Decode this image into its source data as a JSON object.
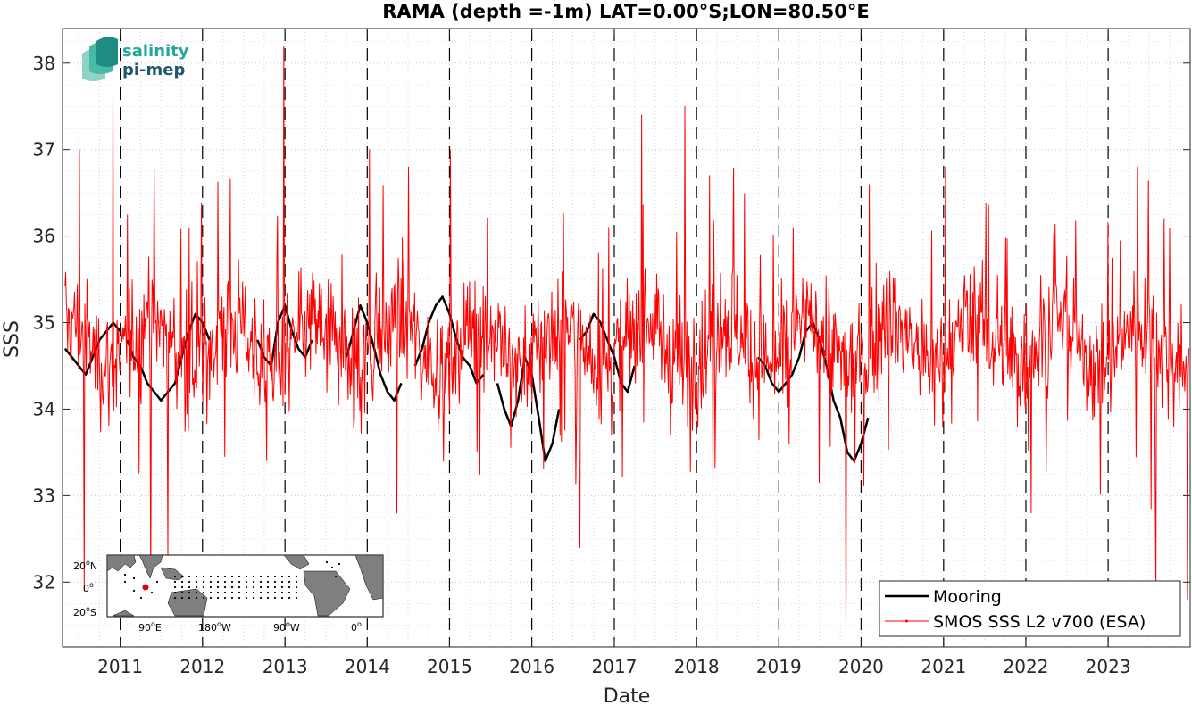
{
  "chart_data": {
    "type": "line",
    "title": "RAMA (depth =-1m) LAT=0.00°S;LON=80.50°E",
    "xlabel": "Date",
    "ylabel": "SSS",
    "xlim": [
      "2010-04-20",
      "2023-12-31"
    ],
    "ylim": [
      31.25,
      38.4
    ],
    "x_ticks": [
      "2011",
      "2012",
      "2013",
      "2014",
      "2015",
      "2016",
      "2017",
      "2018",
      "2019",
      "2020",
      "2021",
      "2022",
      "2023"
    ],
    "y_ticks": [
      "32",
      "33",
      "34",
      "35",
      "36",
      "37",
      "38"
    ],
    "year_lines": [
      "2011-01-01",
      "2012-01-01",
      "2013-01-01",
      "2014-01-01",
      "2015-01-01",
      "2016-01-01",
      "2017-01-01",
      "2018-01-01",
      "2019-01-01",
      "2020-01-01",
      "2021-01-01",
      "2022-01-01",
      "2023-01-01"
    ],
    "grid": true,
    "legend_position": "bottom-right",
    "series": [
      {
        "name": "Mooring",
        "color": "#000000",
        "segments": [
          {
            "x": [
              "2010-05-01",
              "2010-06-01",
              "2010-07-01",
              "2010-08-01",
              "2010-09-01",
              "2010-10-01",
              "2010-11-01",
              "2010-12-01",
              "2011-01-01"
            ],
            "y": [
              34.7,
              34.6,
              34.5,
              34.4,
              34.6,
              34.8,
              34.9,
              35.0,
              34.9
            ]
          },
          {
            "x": [
              "2011-02-01",
              "2011-03-01",
              "2011-04-01",
              "2011-05-01",
              "2011-06-01",
              "2011-07-01",
              "2011-08-01",
              "2011-09-01",
              "2011-10-01",
              "2011-11-01",
              "2011-12-01",
              "2012-01-01",
              "2012-02-01"
            ],
            "y": [
              34.8,
              34.6,
              34.5,
              34.3,
              34.2,
              34.1,
              34.2,
              34.3,
              34.6,
              34.9,
              35.1,
              35.0,
              34.8
            ]
          },
          {
            "x": [
              "2012-09-01",
              "2012-10-01",
              "2012-11-01",
              "2012-12-01",
              "2013-01-01",
              "2013-02-01",
              "2013-03-01",
              "2013-04-01",
              "2013-05-01"
            ],
            "y": [
              34.8,
              34.6,
              34.5,
              35.0,
              35.2,
              34.9,
              34.7,
              34.6,
              34.8
            ]
          },
          {
            "x": [
              "2013-10-01",
              "2013-11-01",
              "2013-12-01",
              "2014-01-01",
              "2014-02-01",
              "2014-03-01",
              "2014-04-01",
              "2014-05-01",
              "2014-06-01"
            ],
            "y": [
              34.6,
              34.9,
              35.2,
              35.0,
              34.7,
              34.4,
              34.2,
              34.1,
              34.3
            ]
          },
          {
            "x": [
              "2014-08-01",
              "2014-09-01",
              "2014-10-01",
              "2014-11-01",
              "2014-12-01",
              "2015-01-01",
              "2015-02-01",
              "2015-03-01",
              "2015-04-01",
              "2015-05-01",
              "2015-06-01"
            ],
            "y": [
              34.5,
              34.7,
              35.0,
              35.2,
              35.3,
              35.1,
              34.8,
              34.6,
              34.5,
              34.3,
              34.4
            ]
          },
          {
            "x": [
              "2015-08-01",
              "2015-09-01",
              "2015-10-01",
              "2015-11-01",
              "2015-12-01",
              "2016-01-01",
              "2016-02-01",
              "2016-03-01",
              "2016-04-01",
              "2016-05-01"
            ],
            "y": [
              34.3,
              34.0,
              33.8,
              34.1,
              34.6,
              34.4,
              33.9,
              33.4,
              33.6,
              34.0
            ]
          },
          {
            "x": [
              "2016-08-01",
              "2016-09-01",
              "2016-10-01",
              "2016-11-01",
              "2016-12-01",
              "2017-01-01",
              "2017-02-01",
              "2017-03-01",
              "2017-04-01"
            ],
            "y": [
              34.8,
              34.9,
              35.1,
              35.0,
              34.8,
              34.6,
              34.3,
              34.2,
              34.5
            ]
          },
          {
            "x": [
              "2018-10-01",
              "2018-11-01",
              "2018-12-01",
              "2019-01-01",
              "2019-02-01",
              "2019-03-01",
              "2019-04-01",
              "2019-05-01",
              "2019-06-01",
              "2019-07-01",
              "2019-08-01",
              "2019-09-01",
              "2019-10-01",
              "2019-11-01",
              "2019-12-01",
              "2020-01-01",
              "2020-02-01"
            ],
            "y": [
              34.6,
              34.5,
              34.3,
              34.2,
              34.3,
              34.4,
              34.6,
              34.9,
              35.0,
              34.8,
              34.5,
              34.1,
              33.9,
              33.5,
              33.4,
              33.6,
              33.9
            ]
          }
        ]
      },
      {
        "name": "SMOS SSS L2 v700 (ESA)",
        "color": "#ff0000",
        "x_start": "2010-05-01",
        "x_end": "2023-12-25",
        "count": 1640,
        "mean": 34.75,
        "typical_range": [
          33.3,
          36.3
        ],
        "peaks": [
          {
            "x": "2010-07-05",
            "y": 37.0
          },
          {
            "x": "2010-12-01",
            "y": 37.7
          },
          {
            "x": "2011-06-01",
            "y": 36.8
          },
          {
            "x": "2012-12-25",
            "y": 38.2
          },
          {
            "x": "2014-01-10",
            "y": 37.0
          },
          {
            "x": "2015-01-05",
            "y": 37.0
          },
          {
            "x": "2017-05-01",
            "y": 37.4
          },
          {
            "x": "2017-11-10",
            "y": 37.5
          },
          {
            "x": "2018-03-01",
            "y": 36.7
          },
          {
            "x": "2021-01-10",
            "y": 36.8
          }
        ],
        "troughs": [
          {
            "x": "2010-07-25",
            "y": 31.9
          },
          {
            "x": "2011-05-15",
            "y": 31.85
          },
          {
            "x": "2011-08-01",
            "y": 32.3
          },
          {
            "x": "2016-08-01",
            "y": 32.4
          },
          {
            "x": "2019-10-25",
            "y": 31.4
          },
          {
            "x": "2023-08-01",
            "y": 31.9
          },
          {
            "x": "2023-12-20",
            "y": 31.8
          }
        ]
      }
    ]
  },
  "inset_map": {
    "lat_labels": [
      "20",
      "0",
      "20"
    ],
    "lat_suffixes": [
      "N",
      "",
      "S"
    ],
    "lon_labels": [
      "90",
      "180",
      "90",
      "0"
    ],
    "lon_suffixes": [
      "E",
      "W",
      "W",
      ""
    ],
    "deg_symbol": "o",
    "marker_color": "#e00000",
    "land_color": "#7f7f7f"
  },
  "logo": {
    "line1": "salinity",
    "line2": "pi-mep",
    "colors": [
      "#22a79c",
      "#1f5a6b"
    ]
  }
}
